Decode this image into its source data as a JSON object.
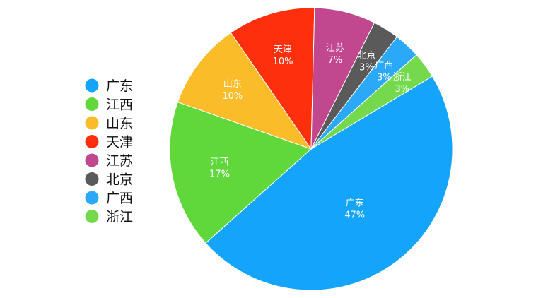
{
  "chart_data": {
    "type": "pie",
    "title": "",
    "legend_position": "left",
    "slices": [
      {
        "name": "广东",
        "value": 47,
        "label": "47%",
        "color": "#14A4FA"
      },
      {
        "name": "江西",
        "value": 17,
        "label": "17%",
        "color": "#60D83C"
      },
      {
        "name": "山东",
        "value": 10,
        "label": "10%",
        "color": "#FBBC29"
      },
      {
        "name": "天津",
        "value": 10,
        "label": "10%",
        "color": "#FE2F0C"
      },
      {
        "name": "江苏",
        "value": 7,
        "label": "7%",
        "color": "#C1478F"
      },
      {
        "name": "北京",
        "value": 3,
        "label": "3%",
        "color": "#5A5A5A"
      },
      {
        "name": "广西",
        "value": 3,
        "label": "3%",
        "color": "#2BA9F8"
      },
      {
        "name": "浙江",
        "value": 3,
        "label": "3%",
        "color": "#74D94C"
      }
    ]
  }
}
